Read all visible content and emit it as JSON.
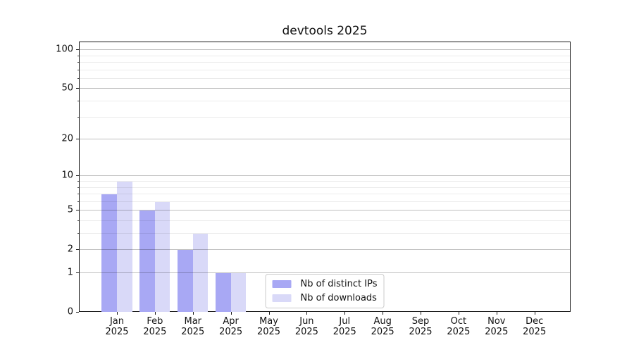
{
  "title": "devtools 2025",
  "chart_data": {
    "type": "bar",
    "title": "devtools 2025",
    "categories": [
      "Jan",
      "Feb",
      "Mar",
      "Apr",
      "May",
      "Jun",
      "Jul",
      "Aug",
      "Sep",
      "Oct",
      "Nov",
      "Dec"
    ],
    "category_year": "2025",
    "series": [
      {
        "name": "Nb of distinct IPs",
        "color": "#a8a8f4",
        "values": [
          7,
          5,
          2,
          1,
          0,
          0,
          0,
          0,
          0,
          0,
          0,
          0
        ]
      },
      {
        "name": "Nb of downloads",
        "color": "#d9d9f8",
        "values": [
          9,
          6,
          3,
          1,
          0,
          0,
          0,
          0,
          0,
          0,
          0,
          0
        ]
      }
    ],
    "y_scale": "log1p",
    "ylim": [
      0,
      115
    ],
    "y_ticks_major": [
      0,
      1,
      2,
      5,
      10,
      20,
      50,
      100
    ],
    "y_ticks_minor": [
      3,
      4,
      6,
      7,
      8,
      9,
      30,
      40,
      60,
      70,
      80,
      90
    ],
    "grid": true,
    "legend_position": "lower center",
    "xlabel": "",
    "ylabel": ""
  }
}
